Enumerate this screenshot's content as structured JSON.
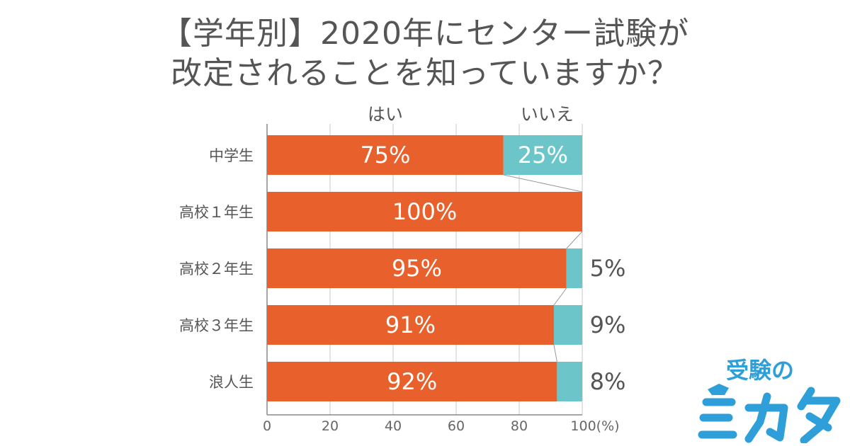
{
  "title": {
    "line1": "【学年別】2020年にセンター試験が",
    "line2": "改定されることを知っていますか？"
  },
  "chart_data": {
    "type": "bar",
    "stacked": true,
    "orientation": "horizontal",
    "categories": [
      "中学生",
      "高校１年生",
      "高校２年生",
      "高校３年生",
      "浪人生"
    ],
    "series": [
      {
        "name": "はい",
        "values": [
          75,
          100,
          95,
          91,
          92
        ],
        "labels": [
          "75%",
          "100%",
          "95%",
          "91%",
          "92%"
        ],
        "color": "#e8602c"
      },
      {
        "name": "いいえ",
        "values": [
          25,
          0,
          5,
          9,
          8
        ],
        "labels": [
          "25%",
          "",
          "5%",
          "9%",
          "8%"
        ],
        "color": "#6cc6c9"
      }
    ],
    "xlim": [
      0,
      100
    ],
    "xticks": [
      "0",
      "20",
      "40",
      "60",
      "80",
      "100(%)"
    ],
    "xtick_values": [
      0,
      20,
      40,
      60,
      80,
      100
    ],
    "grid": true
  },
  "logo": {
    "top_text": "受験の",
    "bottom_text": "ミカタ",
    "color": "#2e9fd8"
  }
}
